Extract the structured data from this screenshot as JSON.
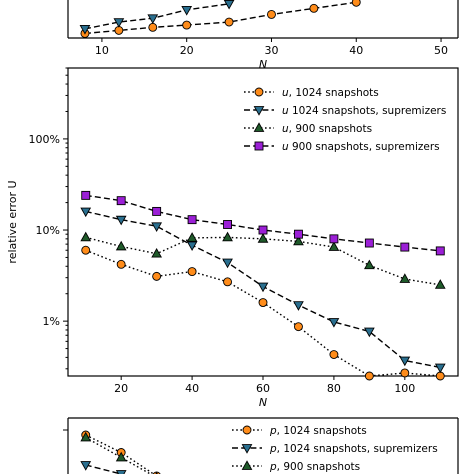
{
  "colors": {
    "orange": "#ff8c1a",
    "blue": "#2a6f8f",
    "green": "#1f5a2a",
    "purple": "#9b1fd6"
  },
  "chart_data": [
    {
      "type": "line",
      "title": "",
      "xlabel": "N",
      "ylabel": "",
      "xlim": [
        6,
        52
      ],
      "xticks": [
        10,
        20,
        30,
        40,
        50
      ],
      "xtick_labels": [
        "10",
        "20",
        "30",
        "40",
        "50"
      ],
      "series": [
        {
          "marker": "circle",
          "color": "#ff8c1a",
          "x": [
            8,
            12,
            16,
            20,
            25,
            30,
            35,
            40
          ],
          "y": [
            0.12,
            0.2,
            0.28,
            0.34,
            0.42,
            0.62,
            0.78,
            0.94
          ]
        },
        {
          "marker": "triangle-down",
          "color": "#2a6f8f",
          "x": [
            8,
            12,
            16,
            20,
            25
          ],
          "y": [
            0.24,
            0.42,
            0.52,
            0.74,
            0.9
          ]
        }
      ]
    },
    {
      "type": "line",
      "title": "",
      "xlabel": "N",
      "ylabel": "relative error U",
      "yscale": "log",
      "xlim": [
        5,
        115
      ],
      "ylim": [
        0.0025,
        6.0
      ],
      "xticks": [
        20,
        40,
        60,
        80,
        100
      ],
      "xtick_labels": [
        "20",
        "40",
        "60",
        "80",
        "100"
      ],
      "yticks": [
        0.01,
        0.1,
        1.0
      ],
      "ytick_labels": [
        "1%",
        "10%",
        "100%"
      ],
      "legend": "top-right",
      "series": [
        {
          "name": "u, 1024 snapshots",
          "name_italic": "u",
          "name_rest": ", 1024 snapshots",
          "marker": "circle",
          "linestyle": "dotted",
          "color": "#ff8c1a",
          "x": [
            10,
            20,
            30,
            40,
            50,
            60,
            70,
            80,
            90,
            100,
            110
          ],
          "y": [
            0.06,
            0.042,
            0.031,
            0.035,
            0.027,
            0.016,
            0.0087,
            0.0043,
            0.0025,
            0.0027,
            0.0025
          ]
        },
        {
          "name": "u 1024 snapshots, supremizers",
          "name_italic": "u",
          "name_rest": " 1024 snapshots, supremizers",
          "marker": "triangle-down",
          "linestyle": "dashed",
          "color": "#2a6f8f",
          "x": [
            10,
            20,
            30,
            40,
            50,
            60,
            70,
            80,
            90,
            100,
            110
          ],
          "y": [
            0.16,
            0.13,
            0.11,
            0.068,
            0.044,
            0.024,
            0.015,
            0.0098,
            0.0077,
            0.0037,
            0.0031
          ]
        },
        {
          "name": "u, 900 snapshots",
          "name_italic": "u",
          "name_rest": ", 900 snapshots",
          "marker": "triangle-up",
          "linestyle": "dotted",
          "color": "#1f5a2a",
          "x": [
            10,
            20,
            30,
            40,
            50,
            60,
            70,
            80,
            90,
            100,
            110
          ],
          "y": [
            0.083,
            0.066,
            0.055,
            0.082,
            0.083,
            0.08,
            0.075,
            0.065,
            0.041,
            0.029,
            0.025
          ]
        },
        {
          "name": "u 900 snapshots, supremizers",
          "name_italic": "u",
          "name_rest": " 900 snapshots, supremizers",
          "marker": "square",
          "linestyle": "dashed",
          "color": "#9b1fd6",
          "x": [
            10,
            20,
            30,
            40,
            50,
            60,
            70,
            80,
            90,
            100,
            110
          ],
          "y": [
            0.24,
            0.21,
            0.16,
            0.13,
            0.115,
            0.1,
            0.09,
            0.08,
            0.072,
            0.065,
            0.059
          ]
        }
      ]
    },
    {
      "type": "line",
      "title": "",
      "xlabel": "",
      "ylabel": "",
      "legend": "top-right",
      "series": [
        {
          "name": "p, 1024 snapshots",
          "name_italic": "p",
          "name_rest": ", 1024 snapshots",
          "marker": "circle",
          "linestyle": "dotted",
          "color": "#ff8c1a",
          "x": [
            10,
            20,
            30
          ],
          "y": [
            0.9,
            0.55,
            0.08
          ]
        },
        {
          "name": "p, 1024 snapshots, supremizers",
          "name_italic": "p",
          "name_rest": ", 1024 snapshots, supremizers",
          "marker": "triangle-down",
          "linestyle": "dashed",
          "color": "#2a6f8f",
          "x": [
            10,
            20,
            30
          ],
          "y": [
            0.3,
            0.12,
            0.0
          ]
        },
        {
          "name": "p, 900 snapshots",
          "name_italic": "p",
          "name_rest": ", 900 snapshots",
          "marker": "triangle-up",
          "linestyle": "dotted",
          "color": "#1f5a2a",
          "x": [
            10,
            20,
            30
          ],
          "y": [
            0.85,
            0.45,
            0.05
          ]
        }
      ]
    }
  ]
}
